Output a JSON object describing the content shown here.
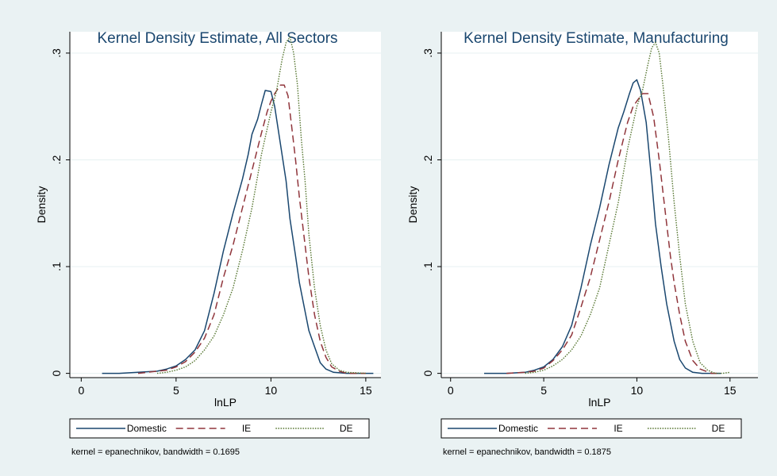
{
  "colors": {
    "background": "#eaf2f3",
    "domestic": "#1a476f",
    "ie": "#90353b",
    "de": "#55752f",
    "grid": "#eaf2f3"
  },
  "chart_data": [
    {
      "type": "line",
      "title": "Kernel Density Estimate, All Sectors",
      "xlabel": "lnLP",
      "ylabel": "Density",
      "xlim": [
        -0.6,
        15.8
      ],
      "ylim": [
        -0.004,
        0.32
      ],
      "xticks": [
        0,
        5,
        10,
        15
      ],
      "xtick_labels": [
        "0",
        "5",
        "10",
        "15"
      ],
      "yticks": [
        0,
        0.1,
        0.2,
        0.3
      ],
      "ytick_labels": [
        "0",
        ".1",
        ".2",
        ".3"
      ],
      "grid": true,
      "legend_position": "bottom",
      "note": "kernel = epanechnikov, bandwidth = 0.1695",
      "series": [
        {
          "name": "Domestic",
          "x": [
            1.1,
            2,
            3,
            4,
            4.5,
            5,
            5.5,
            6,
            6.5,
            7,
            7.5,
            8,
            8.5,
            8.8,
            9,
            9.3,
            9.5,
            9.7,
            10,
            10.2,
            10.5,
            10.8,
            11,
            11.3,
            11.5,
            11.8,
            12,
            12.3,
            12.6,
            12.9,
            13.3,
            14,
            15,
            15.4
          ],
          "y": [
            0,
            0,
            0.001,
            0.002,
            0.004,
            0.007,
            0.013,
            0.022,
            0.04,
            0.075,
            0.115,
            0.15,
            0.182,
            0.205,
            0.224,
            0.238,
            0.252,
            0.265,
            0.264,
            0.25,
            0.215,
            0.18,
            0.145,
            0.11,
            0.085,
            0.058,
            0.04,
            0.025,
            0.01,
            0.004,
            0.001,
            0,
            0,
            0
          ]
        },
        {
          "name": "IE",
          "x": [
            3,
            4,
            4.5,
            5,
            5.5,
            6,
            6.5,
            7,
            7.5,
            8,
            8.5,
            9,
            9.5,
            9.8,
            10,
            10.2,
            10.5,
            10.7,
            10.9,
            11.1,
            11.3,
            11.5,
            11.8,
            12,
            12.3,
            12.6,
            12.9,
            13.2,
            13.6,
            14,
            15
          ],
          "y": [
            0,
            0.002,
            0.003,
            0.006,
            0.011,
            0.02,
            0.033,
            0.055,
            0.09,
            0.12,
            0.155,
            0.19,
            0.225,
            0.245,
            0.255,
            0.262,
            0.27,
            0.27,
            0.26,
            0.23,
            0.2,
            0.165,
            0.12,
            0.09,
            0.055,
            0.03,
            0.015,
            0.006,
            0.002,
            0,
            0
          ]
        },
        {
          "name": "DE",
          "x": [
            4,
            4.5,
            5,
            5.5,
            6,
            6.5,
            7,
            7.5,
            8,
            8.5,
            9,
            9.5,
            10,
            10.3,
            10.6,
            10.8,
            11,
            11.2,
            11.4,
            11.6,
            11.8,
            12,
            12.3,
            12.6,
            12.9,
            13.2,
            13.6,
            14,
            15
          ],
          "y": [
            0,
            0.001,
            0.003,
            0.006,
            0.012,
            0.022,
            0.035,
            0.055,
            0.08,
            0.115,
            0.155,
            0.205,
            0.245,
            0.265,
            0.295,
            0.31,
            0.315,
            0.3,
            0.27,
            0.22,
            0.18,
            0.13,
            0.08,
            0.045,
            0.022,
            0.009,
            0.003,
            0.001,
            0
          ]
        }
      ]
    },
    {
      "type": "line",
      "title": "Kernel Density Estimate, Manufacturing",
      "xlabel": "lnLP",
      "ylabel": "Density",
      "xlim": [
        -0.5,
        16.5
      ],
      "ylim": [
        -0.004,
        0.32
      ],
      "xticks": [
        0,
        5,
        10,
        15
      ],
      "xtick_labels": [
        "0",
        "5",
        "10",
        "15"
      ],
      "yticks": [
        0,
        0.1,
        0.2,
        0.3
      ],
      "ytick_labels": [
        "0",
        ".1",
        ".2",
        ".3"
      ],
      "grid": true,
      "legend_position": "bottom",
      "note": "kernel = epanechnikov, bandwidth = 0.1875",
      "series": [
        {
          "name": "Domestic",
          "x": [
            1.8,
            3,
            4,
            4.5,
            5,
            5.5,
            6,
            6.5,
            7,
            7.5,
            8,
            8.5,
            9,
            9.3,
            9.6,
            9.8,
            10,
            10.2,
            10.5,
            10.8,
            11,
            11.3,
            11.6,
            12,
            12.3,
            12.6,
            13,
            13.5,
            14,
            14.5
          ],
          "y": [
            0,
            0,
            0.001,
            0.003,
            0.006,
            0.013,
            0.025,
            0.045,
            0.08,
            0.12,
            0.155,
            0.195,
            0.23,
            0.245,
            0.262,
            0.272,
            0.275,
            0.265,
            0.235,
            0.18,
            0.14,
            0.1,
            0.065,
            0.03,
            0.013,
            0.005,
            0.001,
            0,
            0,
            0
          ]
        },
        {
          "name": "IE",
          "x": [
            3,
            4,
            4.5,
            5,
            5.5,
            6,
            6.5,
            7,
            7.5,
            8,
            8.5,
            9,
            9.5,
            9.8,
            10,
            10.3,
            10.6,
            10.9,
            11.2,
            11.5,
            11.8,
            12,
            12.3,
            12.6,
            13,
            13.4,
            14,
            14.5
          ],
          "y": [
            0,
            0.001,
            0.002,
            0.005,
            0.012,
            0.022,
            0.036,
            0.062,
            0.09,
            0.125,
            0.16,
            0.2,
            0.235,
            0.25,
            0.255,
            0.262,
            0.262,
            0.24,
            0.2,
            0.155,
            0.11,
            0.085,
            0.055,
            0.03,
            0.012,
            0.004,
            0,
            0
          ]
        },
        {
          "name": "DE",
          "x": [
            4,
            4.5,
            5,
            5.5,
            6,
            6.5,
            7,
            7.5,
            8,
            8.5,
            9,
            9.5,
            10,
            10.3,
            10.6,
            10.8,
            11,
            11.2,
            11.4,
            11.7,
            12,
            12.3,
            12.6,
            13,
            13.4,
            13.8,
            14.2,
            14.6,
            15
          ],
          "y": [
            0,
            0.001,
            0.003,
            0.007,
            0.013,
            0.022,
            0.035,
            0.055,
            0.08,
            0.12,
            0.16,
            0.21,
            0.25,
            0.265,
            0.29,
            0.305,
            0.31,
            0.3,
            0.27,
            0.22,
            0.16,
            0.11,
            0.065,
            0.03,
            0.01,
            0.003,
            0,
            0,
            0.001
          ]
        }
      ]
    }
  ]
}
